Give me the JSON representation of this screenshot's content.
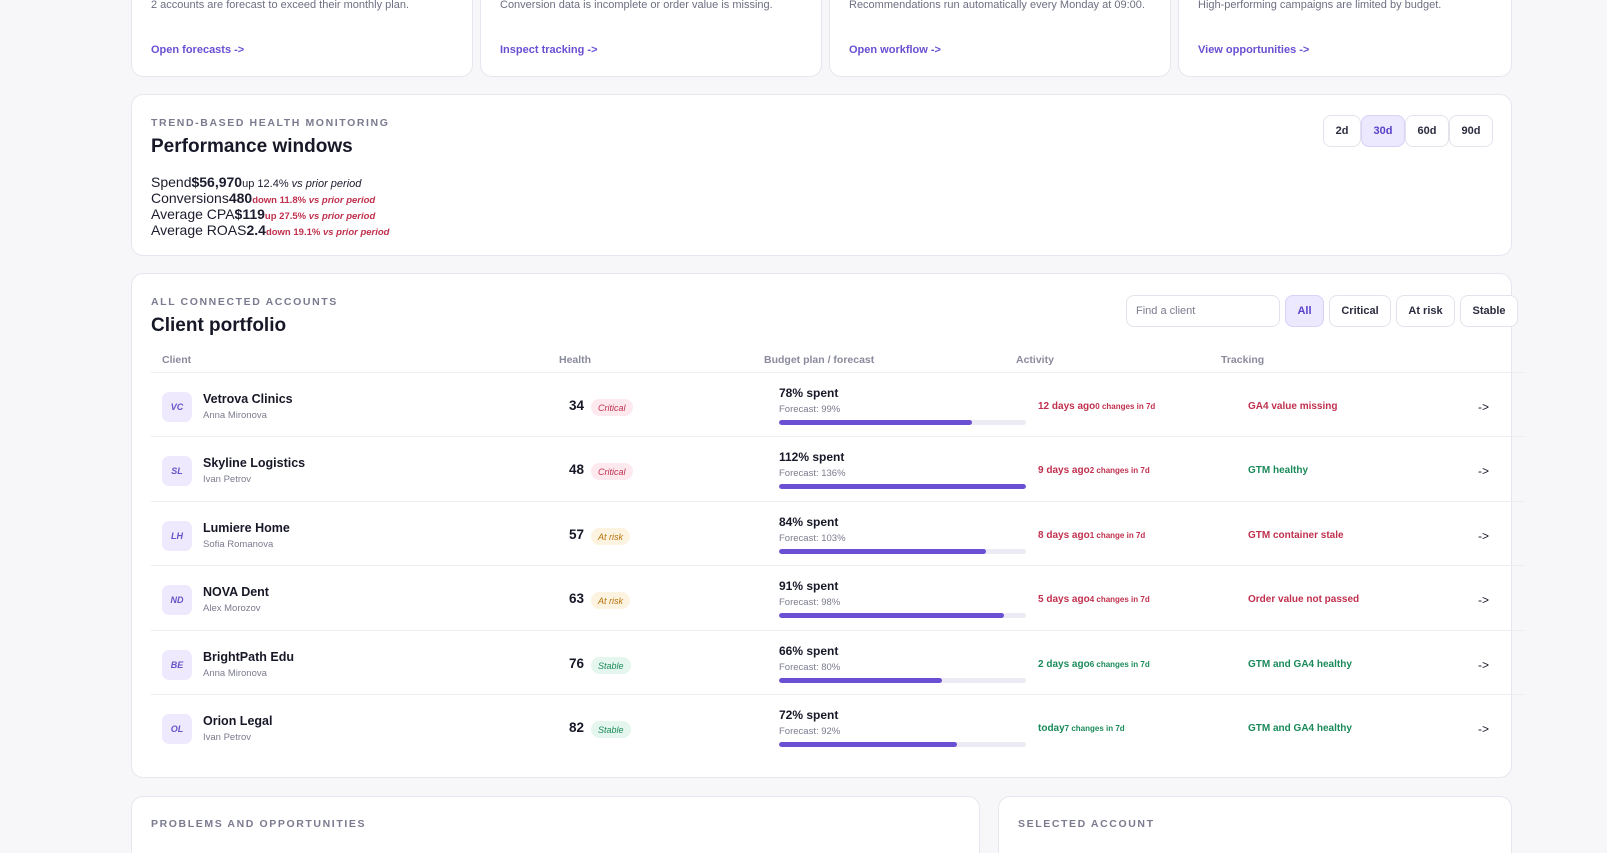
{
  "top_cards": [
    {
      "description": "2 accounts are forecast to exceed their monthly plan.",
      "link": "Open forecasts ->"
    },
    {
      "description": "Conversion data is incomplete or order value is missing.",
      "link": "Inspect tracking ->"
    },
    {
      "description": "Recommendations run automatically every Monday at 09:00.",
      "link": "Open workflow ->"
    },
    {
      "description": "High-performing campaigns are limited by budget.",
      "link": "View opportunities ->"
    }
  ],
  "performance": {
    "kicker": "TREND-BASED HEALTH MONITORING",
    "title": "Performance windows",
    "windows": [
      "2d",
      "30d",
      "60d",
      "90d"
    ],
    "active_window": "30d",
    "metrics": [
      {
        "label": "Spend",
        "value": "$56,970",
        "direction": "up",
        "change": "12.4%",
        "suffix": "vs prior period"
      },
      {
        "label": "Conversions",
        "value": "480",
        "direction": "down",
        "change": "11.8%",
        "suffix": "vs prior period"
      },
      {
        "label": "Average CPA",
        "value": "$119",
        "direction": "up",
        "change": "27.5%",
        "suffix": "vs prior period"
      },
      {
        "label": "Average ROAS",
        "value": "2.4",
        "direction": "down",
        "change": "19.1%",
        "suffix": "vs prior period"
      }
    ]
  },
  "portfolio": {
    "kicker": "ALL CONNECTED ACCOUNTS",
    "title": "Client portfolio",
    "search_placeholder": "Find a client",
    "filters": [
      "All",
      "Critical",
      "At risk",
      "Stable"
    ],
    "active_filter": "All",
    "columns": [
      "Client",
      "Health",
      "Budget plan / forecast",
      "Activity",
      "Tracking"
    ],
    "rows": [
      {
        "initials": "VC",
        "name": "Vetrova Clinics",
        "owner": "Anna Mironova",
        "score": "34",
        "status": "Critical",
        "spent": "78% spent",
        "forecast": "Forecast: 99%",
        "spent_pct": 78,
        "activity": "12 days ago",
        "changes": "0 changes in 7d",
        "tracking": "GA4 value missing",
        "arrow": "->"
      },
      {
        "initials": "SL",
        "name": "Skyline Logistics",
        "owner": "Ivan Petrov",
        "score": "48",
        "status": "Critical",
        "spent": "112% spent",
        "forecast": "Forecast: 136%",
        "spent_pct": 100,
        "activity": "9 days ago",
        "changes": "2 changes in 7d",
        "tracking": "GTM healthy",
        "arrow": "->"
      },
      {
        "initials": "LH",
        "name": "Lumiere Home",
        "owner": "Sofia Romanova",
        "score": "57",
        "status": "At risk",
        "spent": "84% spent",
        "forecast": "Forecast: 103%",
        "spent_pct": 84,
        "activity": "8 days ago",
        "changes": "1 change in 7d",
        "tracking": "GTM container stale",
        "arrow": "->"
      },
      {
        "initials": "ND",
        "name": "NOVA Dent",
        "owner": "Alex Morozov",
        "score": "63",
        "status": "At risk",
        "spent": "91% spent",
        "forecast": "Forecast: 98%",
        "spent_pct": 91,
        "activity": "5 days ago",
        "changes": "4 changes in 7d",
        "tracking": "Order value not passed",
        "arrow": "->"
      },
      {
        "initials": "BE",
        "name": "BrightPath Edu",
        "owner": "Anna Mironova",
        "score": "76",
        "status": "Stable",
        "spent": "66% spent",
        "forecast": "Forecast: 80%",
        "spent_pct": 66,
        "activity": "2 days ago",
        "changes": "6 changes in 7d",
        "tracking": "GTM and GA4 healthy",
        "arrow": "->"
      },
      {
        "initials": "OL",
        "name": "Orion Legal",
        "owner": "Ivan Petrov",
        "score": "82",
        "status": "Stable",
        "spent": "72% spent",
        "forecast": "Forecast: 92%",
        "spent_pct": 72,
        "activity": "today",
        "changes": "7 changes in 7d",
        "tracking": "GTM and GA4 healthy",
        "arrow": "->"
      }
    ]
  },
  "problems": {
    "kicker": "PROBLEMS AND OPPORTUNITIES"
  },
  "selected": {
    "kicker": "SELECTED ACCOUNT"
  },
  "colors": {
    "accent": "#6a4fd2",
    "critical": "#c0304e",
    "warning": "#b57309",
    "healthy": "#1b8a5a"
  }
}
